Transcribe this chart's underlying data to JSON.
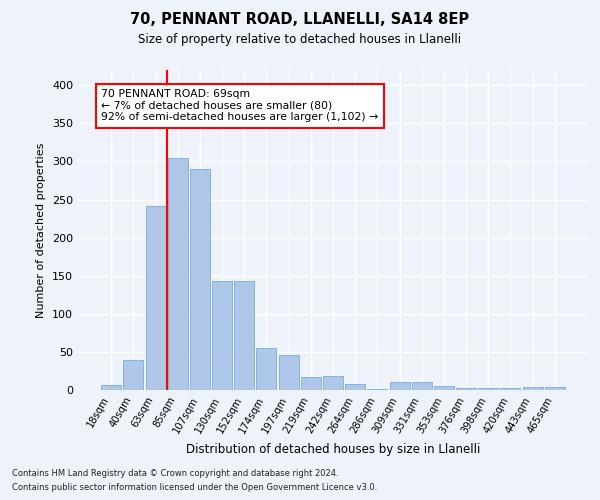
{
  "title1": "70, PENNANT ROAD, LLANELLI, SA14 8EP",
  "title2": "Size of property relative to detached houses in Llanelli",
  "xlabel": "Distribution of detached houses by size in Llanelli",
  "ylabel": "Number of detached properties",
  "categories": [
    "18sqm",
    "40sqm",
    "63sqm",
    "85sqm",
    "107sqm",
    "130sqm",
    "152sqm",
    "174sqm",
    "197sqm",
    "219sqm",
    "242sqm",
    "264sqm",
    "286sqm",
    "309sqm",
    "331sqm",
    "353sqm",
    "376sqm",
    "398sqm",
    "420sqm",
    "443sqm",
    "465sqm"
  ],
  "values": [
    7,
    40,
    241,
    305,
    290,
    143,
    143,
    55,
    46,
    17,
    19,
    8,
    1,
    10,
    10,
    5,
    3,
    3,
    2,
    4,
    4
  ],
  "bar_color": "#aec6e8",
  "bar_edge_color": "#7aadd4",
  "background_color": "#eef2fa",
  "grid_color": "#ffffff",
  "annotation_text": "70 PENNANT ROAD: 69sqm\n← 7% of detached houses are smaller (80)\n92% of semi-detached houses are larger (1,102) →",
  "annotation_box_color": "white",
  "annotation_box_edge": "red",
  "red_line_x": 2.5,
  "ylim": [
    0,
    420
  ],
  "yticks": [
    0,
    50,
    100,
    150,
    200,
    250,
    300,
    350,
    400
  ],
  "footer1": "Contains HM Land Registry data © Crown copyright and database right 2024.",
  "footer2": "Contains public sector information licensed under the Open Government Licence v3.0."
}
